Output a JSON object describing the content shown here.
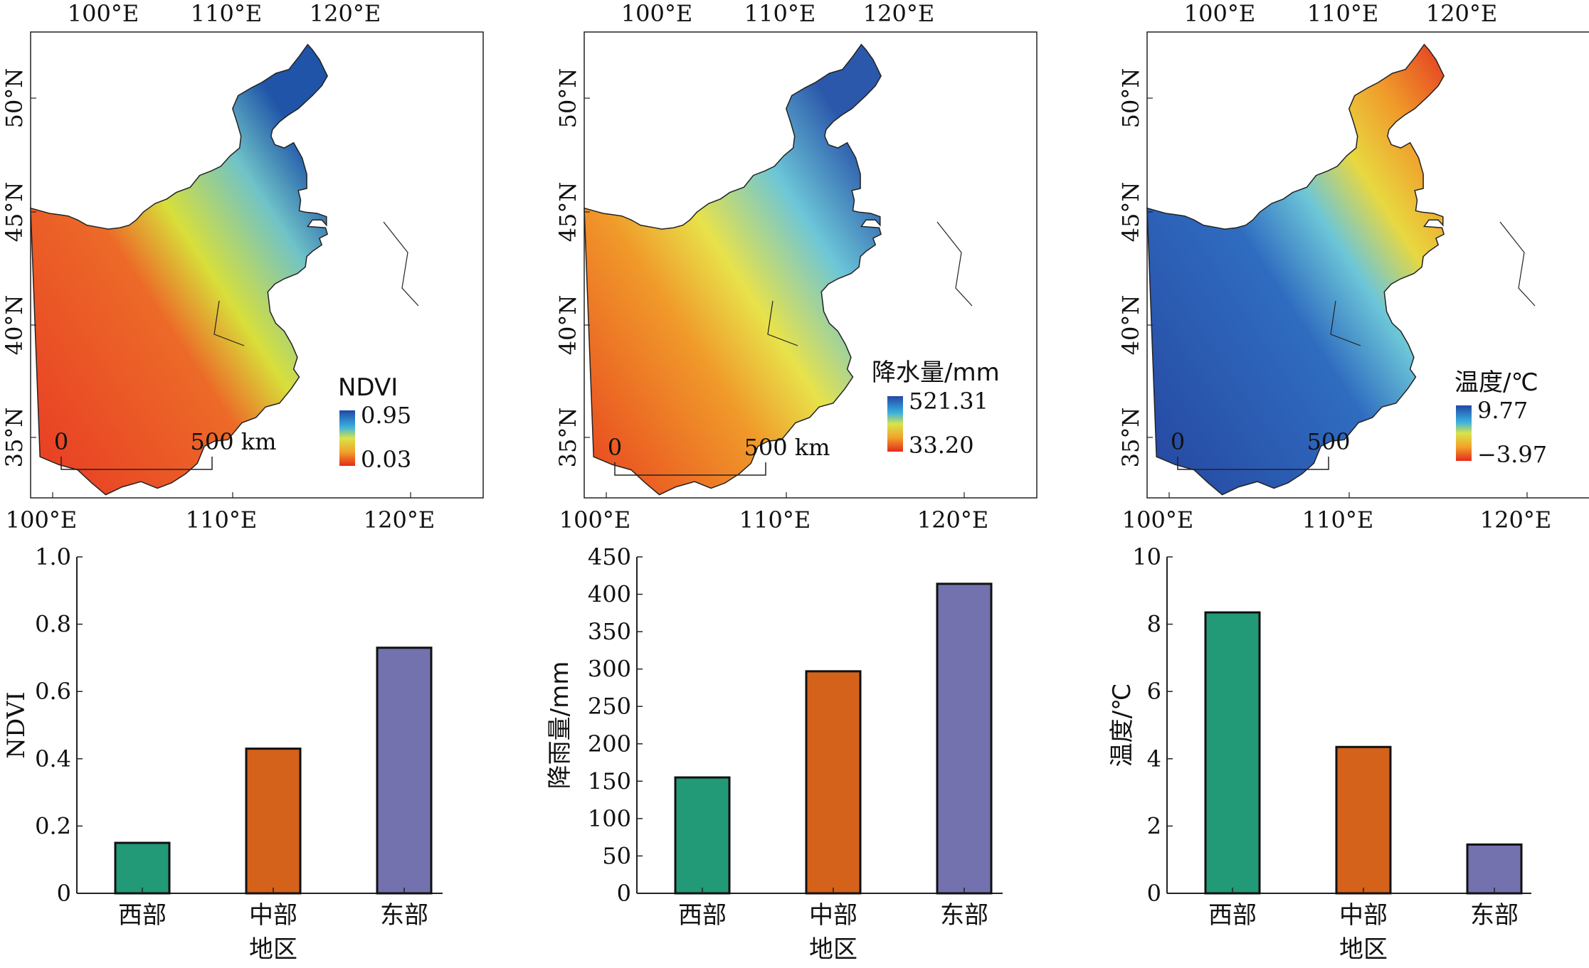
{
  "maps": [
    {
      "legend_title": "NDVI",
      "legend_max": "0.95",
      "legend_min": "0.03",
      "scale_start": "0",
      "scale_end": "500 km",
      "lon_labels": [
        "100°E",
        "110°E",
        "120°E"
      ],
      "lat_labels": [
        "50°N",
        "45°N",
        "40°N",
        "35°N"
      ],
      "colors": {
        "dominant": "#e83a24",
        "mid": "#d8df3a",
        "high": "#1f54a8"
      }
    },
    {
      "legend_title": "降水量/mm",
      "legend_max": "521.31",
      "legend_min": "33.20",
      "scale_start": "0",
      "scale_end": "500 km",
      "lon_labels": [
        "100°E",
        "110°E",
        "120°E"
      ],
      "lat_labels": [
        "50°N",
        "45°N",
        "40°N",
        "35°N"
      ],
      "colors": {
        "dominant": "#e8421f",
        "mid": "#e8e24a",
        "high": "#2b58aa"
      }
    },
    {
      "legend_title": "温度/℃",
      "legend_max": "9.77",
      "legend_min": "−3.97",
      "scale_start": "0",
      "scale_end": "500",
      "lon_labels": [
        "100°E",
        "110°E",
        "120°E"
      ],
      "lat_labels": [
        "50°N",
        "45°N",
        "40°N",
        "35°N"
      ],
      "colors": {
        "dominant": "#2646a0",
        "mid": "#e8d840",
        "high": "#e43a22"
      }
    }
  ],
  "bar_colors": [
    "#229977",
    "#d4621a",
    "#7371ae"
  ],
  "xlabel": "地区",
  "chart_data": [
    {
      "type": "bar",
      "categories": [
        "西部",
        "中部",
        "东部"
      ],
      "values": [
        0.15,
        0.43,
        0.73
      ],
      "xlabel": "地区",
      "ylabel": "NDVI",
      "ylim": [
        0,
        1.0
      ],
      "yticks": [
        "0",
        "0.2",
        "0.4",
        "0.6",
        "0.8",
        "1.0"
      ],
      "ytick_values": [
        0,
        0.2,
        0.4,
        0.6,
        0.8,
        1.0
      ]
    },
    {
      "type": "bar",
      "categories": [
        "西部",
        "中部",
        "东部"
      ],
      "values": [
        155,
        297,
        414
      ],
      "xlabel": "地区",
      "ylabel": "降雨量/mm",
      "ylim": [
        0,
        450
      ],
      "yticks": [
        "0",
        "50",
        "100",
        "150",
        "200",
        "250",
        "300",
        "350",
        "400",
        "450"
      ],
      "ytick_values": [
        0,
        50,
        100,
        150,
        200,
        250,
        300,
        350,
        400,
        450
      ]
    },
    {
      "type": "bar",
      "categories": [
        "西部",
        "中部",
        "东部"
      ],
      "values": [
        8.35,
        4.35,
        1.45
      ],
      "xlabel": "地区",
      "ylabel": "温度/℃",
      "ylim": [
        0,
        10
      ],
      "yticks": [
        "0",
        "2",
        "4",
        "6",
        "8",
        "10"
      ],
      "ytick_values": [
        0,
        2,
        4,
        6,
        8,
        10
      ]
    }
  ]
}
